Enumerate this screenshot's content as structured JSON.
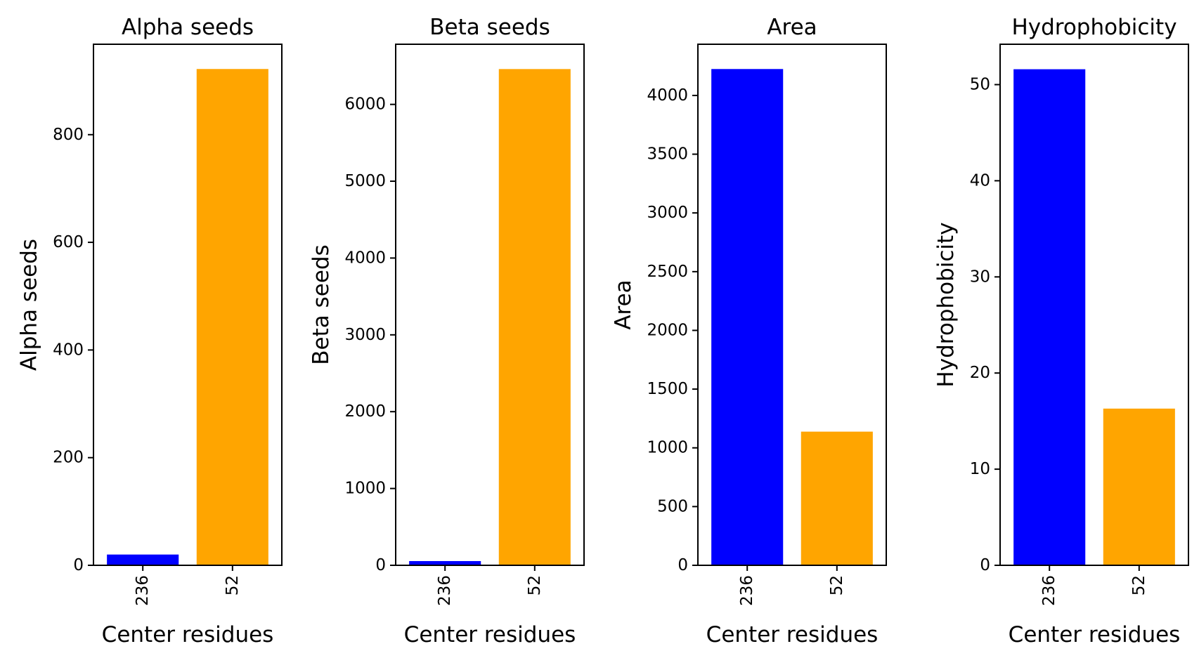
{
  "chart_data": [
    {
      "type": "bar",
      "title": "Alpha seeds",
      "xlabel": "Center residues",
      "ylabel": "Alpha seeds",
      "categories": [
        "236",
        "52"
      ],
      "values": [
        20,
        922
      ],
      "colors": [
        "#0000ff",
        "#ffa500"
      ],
      "ylim": [
        0,
        968
      ],
      "yticks": [
        0,
        200,
        400,
        600,
        800
      ],
      "grid": false
    },
    {
      "type": "bar",
      "title": "Beta seeds",
      "xlabel": "Center residues",
      "ylabel": "Beta seeds",
      "categories": [
        "236",
        "52"
      ],
      "values": [
        55,
        6460
      ],
      "colors": [
        "#0000ff",
        "#ffa500"
      ],
      "ylim": [
        0,
        6783
      ],
      "yticks": [
        0,
        1000,
        2000,
        3000,
        4000,
        5000,
        6000
      ],
      "grid": false
    },
    {
      "type": "bar",
      "title": "Area",
      "xlabel": "Center residues",
      "ylabel": "Area",
      "categories": [
        "236",
        "52"
      ],
      "values": [
        4225,
        1138
      ],
      "colors": [
        "#0000ff",
        "#ffa500"
      ],
      "ylim": [
        0,
        4436
      ],
      "yticks": [
        0,
        500,
        1000,
        1500,
        2000,
        2500,
        3000,
        3500,
        4000
      ],
      "grid": false
    },
    {
      "type": "bar",
      "title": "Hydrophobicity",
      "xlabel": "Center residues",
      "ylabel": "Hydrophobicity",
      "categories": [
        "236",
        "52"
      ],
      "values": [
        51.6,
        16.3
      ],
      "colors": [
        "#0000ff",
        "#ffa500"
      ],
      "ylim": [
        0,
        54.2
      ],
      "yticks": [
        0,
        10,
        20,
        30,
        40,
        50
      ],
      "grid": false
    }
  ]
}
